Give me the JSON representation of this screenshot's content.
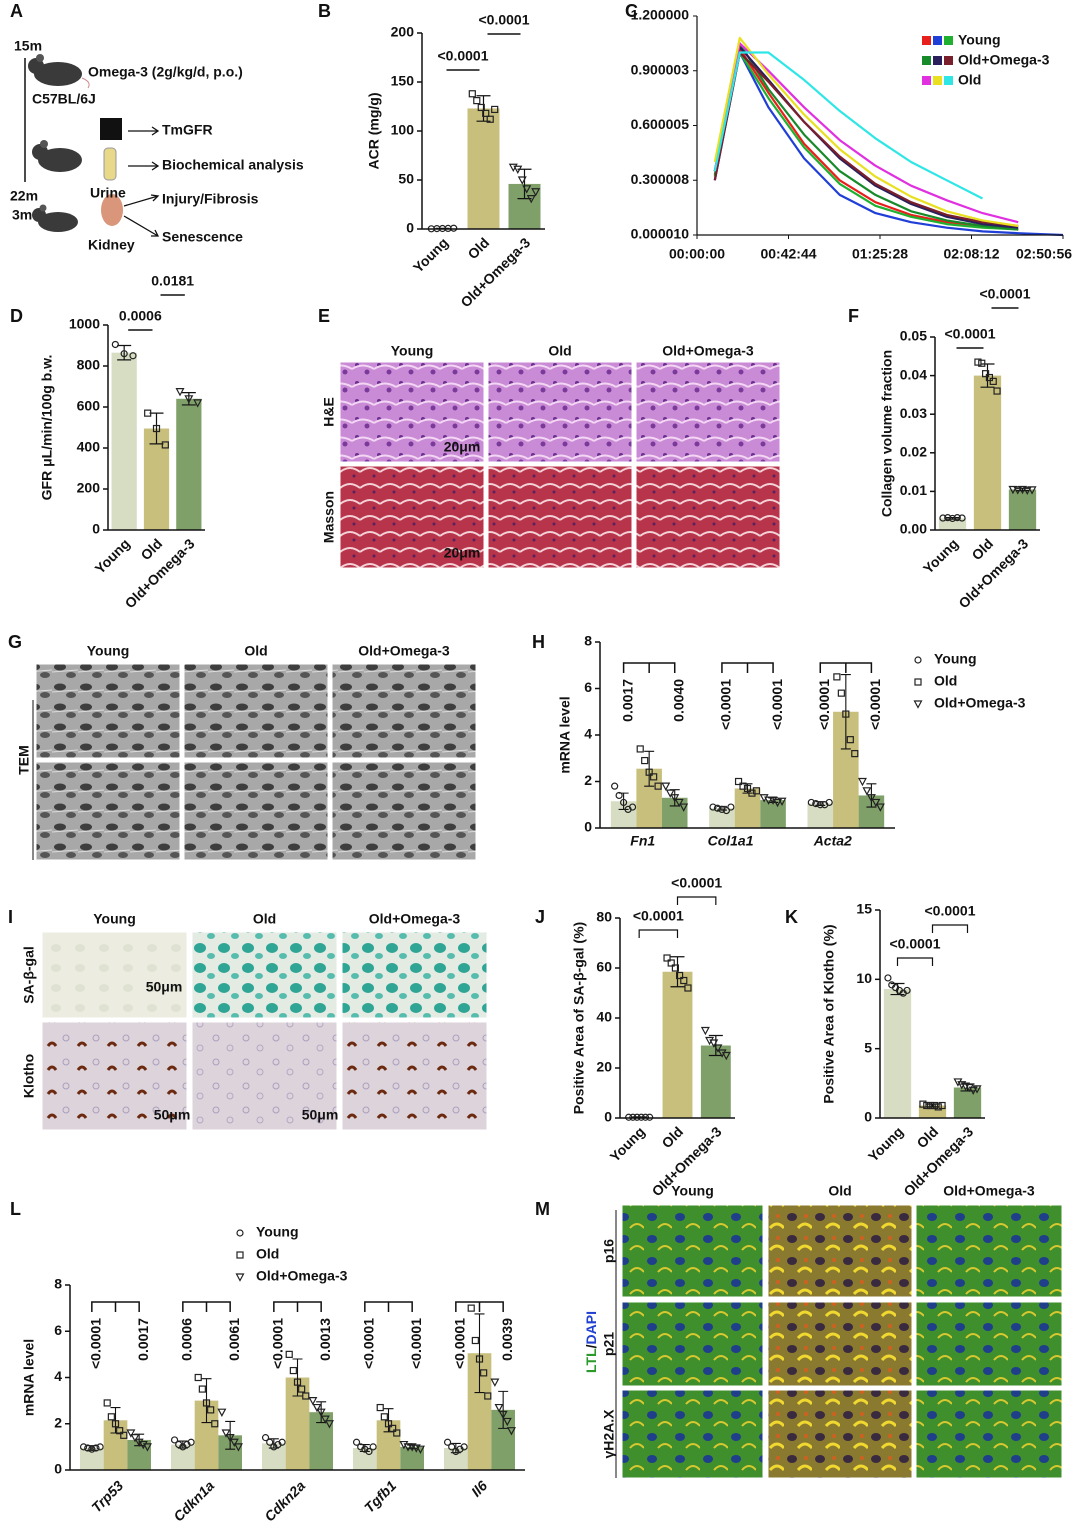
{
  "chart_data": [
    {
      "type": "bar",
      "letter": "B",
      "ylabel": "ACR (mg/g)",
      "categories": [
        "Young",
        "Old",
        "Old+Omega-3"
      ],
      "colors": [
        "#d6ddc3",
        "#c9bf7d",
        "#80a06a"
      ],
      "values": [
        0.5,
        123,
        46
      ],
      "errors": [
        0.2,
        13,
        15
      ],
      "points": [
        [
          0.2,
          0.4,
          0.5,
          0.6,
          0.8
        ],
        [
          138,
          131,
          124,
          118,
          112,
          122
        ],
        [
          63,
          61,
          50,
          41,
          31,
          38
        ]
      ],
      "ylim": [
        0,
        200
      ],
      "yticks": [
        0,
        50,
        100,
        150,
        200
      ],
      "annotation_style": "line",
      "annotations": [
        "<0.0001",
        "<0.0001"
      ]
    },
    {
      "type": "line",
      "letter": "C",
      "x": [
        0,
        500,
        1200,
        2000,
        3000,
        4000,
        5000,
        6000,
        7000,
        8000,
        9000,
        10256
      ],
      "xlim": [
        0,
        10256
      ],
      "xticks": [
        {
          "value": 0,
          "label": "00:00:00"
        },
        {
          "value": 2564,
          "label": "00:42:44"
        },
        {
          "value": 5128,
          "label": "01:25:28"
        },
        {
          "value": 7692,
          "label": "02:08:12"
        },
        {
          "value": 10256,
          "label": "02:50:56"
        }
      ],
      "ylim": [
        1e-05,
        1.2
      ],
      "yticks": [
        {
          "value": 1e-05,
          "label": "0.000010"
        },
        0.300008,
        0.600005,
        0.900003,
        {
          "value": 1.2,
          "label": "1.200000"
        }
      ],
      "series": [
        {
          "name": "Young",
          "curves": [
            {
              "color": "#e8201c",
              "values": [
                null,
                0.35,
                1.02,
                0.78,
                0.5,
                0.3,
                0.18,
                0.11,
                0.07,
                0.05,
                0.03,
                null
              ]
            },
            {
              "color": "#1f3fd6",
              "values": [
                null,
                0.3,
                1.0,
                0.7,
                0.42,
                0.22,
                0.12,
                0.07,
                0.04,
                0.02,
                0.01,
                1e-05
              ]
            },
            {
              "color": "#20b030",
              "values": [
                null,
                0.32,
                1.0,
                0.75,
                0.48,
                0.28,
                0.16,
                0.1,
                0.06,
                0.04,
                0.03,
                null
              ]
            }
          ]
        },
        {
          "name": "Old+Omega-3",
          "curves": [
            {
              "color": "#178a2a",
              "values": [
                null,
                0.33,
                1.05,
                0.8,
                0.55,
                0.35,
                0.22,
                0.13,
                0.08,
                0.05,
                0.03,
                null
              ]
            },
            {
              "color": "#2a1f5c",
              "values": [
                null,
                0.35,
                1.03,
                0.85,
                0.62,
                0.42,
                0.27,
                0.17,
                0.1,
                0.06,
                0.04,
                null
              ]
            },
            {
              "color": "#7a1f2b",
              "values": [
                null,
                0.3,
                1.0,
                0.84,
                0.62,
                0.43,
                0.28,
                0.18,
                0.11,
                0.07,
                0.05,
                null
              ]
            }
          ]
        },
        {
          "name": "Old",
          "curves": [
            {
              "color": "#e030e0",
              "values": [
                null,
                0.35,
                1.05,
                0.9,
                0.7,
                0.52,
                0.38,
                0.27,
                0.19,
                0.12,
                0.07,
                null
              ]
            },
            {
              "color": "#e8e020",
              "values": [
                null,
                0.4,
                1.08,
                0.88,
                0.66,
                0.47,
                0.32,
                0.21,
                0.13,
                0.08,
                0.05,
                null
              ]
            },
            {
              "color": "#2ee6e6",
              "values": [
                null,
                0.35,
                1.0,
                1.0,
                0.85,
                0.68,
                0.53,
                0.4,
                0.3,
                0.2,
                null,
                null
              ]
            }
          ]
        }
      ]
    },
    {
      "type": "bar",
      "letter": "D",
      "ylabel": "GFR μL/min/100g b.w.",
      "categories": [
        "Young",
        "Old",
        "Old+Omega-3"
      ],
      "colors": [
        "#d6ddc3",
        "#c9bf7d",
        "#80a06a"
      ],
      "values": [
        865,
        495,
        640
      ],
      "errors": [
        35,
        75,
        30
      ],
      "points": [
        [
          905,
          860,
          850
        ],
        [
          570,
          495,
          415
        ],
        [
          675,
          640,
          620
        ]
      ],
      "ylim": [
        0,
        1000
      ],
      "yticks": [
        0,
        200,
        400,
        600,
        800,
        1000
      ],
      "annotation_style": "line",
      "annotations": [
        "0.0006",
        "0.0181"
      ]
    },
    {
      "type": "bar",
      "letter": "F",
      "ylabel": "Collagen volume fraction",
      "categories": [
        "Young",
        "Old",
        "Old+Omega-3"
      ],
      "colors": [
        "#d6ddc3",
        "#c9bf7d",
        "#80a06a"
      ],
      "values": [
        0.003,
        0.04,
        0.0105
      ],
      "errors": [
        0.0002,
        0.003,
        0.0003
      ],
      "points": [
        [
          0.0031,
          0.0032,
          0.003,
          0.0032,
          0.0031
        ],
        [
          0.0435,
          0.0432,
          0.0405,
          0.0395,
          0.0385,
          0.036
        ],
        [
          0.0105,
          0.0104,
          0.0105,
          0.0103,
          0.0104
        ]
      ],
      "ylim": [
        0,
        0.05
      ],
      "yticks": [
        {
          "value": 0,
          "label": "0.00"
        },
        0.01,
        0.02,
        0.03,
        0.04,
        0.05
      ],
      "annotation_style": "line",
      "annotations": [
        "<0.0001",
        "<0.0001"
      ]
    },
    {
      "type": "grouped_bar",
      "letter": "H",
      "ylabel": "mRNA level",
      "categories": [
        "Fn1",
        "Col1a1",
        "Acta2"
      ],
      "ylim": [
        0,
        8
      ],
      "yticks": [
        0,
        2,
        4,
        6,
        8
      ],
      "series": [
        {
          "name": "Young",
          "color": "#d6ddc3",
          "values": [
            1.15,
            0.85,
            1.05
          ],
          "errors": [
            0.35,
            0.08,
            0.08
          ],
          "points": [
            [
              1.8,
              1.4,
              1.1,
              0.8,
              0.9
            ],
            [
              0.9,
              0.85,
              0.8,
              0.75,
              0.9
            ],
            [
              1.1,
              1.05,
              1.0,
              1.0,
              1.1
            ]
          ]
        },
        {
          "name": "Old",
          "color": "#c9bf7d",
          "values": [
            2.55,
            1.7,
            5.0
          ],
          "errors": [
            0.75,
            0.2,
            1.6
          ],
          "points": [
            [
              3.4,
              2.9,
              2.4,
              2.2,
              1.8
            ],
            [
              2.0,
              1.8,
              1.7,
              1.5,
              1.6
            ],
            [
              6.5,
              5.8,
              4.9,
              3.8,
              3.2
            ]
          ]
        },
        {
          "name": "Old+Omega-3",
          "color": "#80a06a",
          "values": [
            1.3,
            1.2,
            1.4
          ],
          "errors": [
            0.35,
            0.1,
            0.5
          ],
          "points": [
            [
              1.8,
              1.5,
              1.3,
              1.1,
              0.9
            ],
            [
              1.3,
              1.2,
              1.2,
              1.1,
              1.15
            ],
            [
              2.0,
              1.6,
              1.3,
              1.1,
              0.9
            ]
          ]
        }
      ],
      "annotations": [
        [
          "0.0017",
          "0.0040"
        ],
        [
          "<0.0001",
          "<0.0001"
        ],
        [
          "<0.0001",
          "<0.0001"
        ]
      ]
    },
    {
      "type": "bar",
      "letter": "J",
      "ylabel": "Positive Area of SA-β-gal  (%)",
      "categories": [
        "Young",
        "Old",
        "Old+Omega-3"
      ],
      "colors": [
        "#d6ddc3",
        "#c9bf7d",
        "#80a06a"
      ],
      "values": [
        0.3,
        58.5,
        29
      ],
      "errors": [
        0.1,
        6,
        4
      ],
      "points": [
        [
          0.3,
          0.3,
          0.3,
          0.3,
          0.3,
          0.3
        ],
        [
          64,
          62,
          60,
          57,
          55,
          52
        ],
        [
          35,
          31,
          30,
          28,
          26,
          25
        ]
      ],
      "ylim": [
        0,
        80
      ],
      "yticks": [
        0,
        20,
        40,
        60,
        80
      ],
      "annotation_style": "bracket",
      "annotations": [
        "<0.0001",
        "<0.0001"
      ]
    },
    {
      "type": "bar",
      "letter": "K",
      "ylabel": "Positive Area of Klotho (%)",
      "categories": [
        "Young",
        "Old",
        "Old+Omega-3"
      ],
      "colors": [
        "#d6ddc3",
        "#c9bf7d",
        "#80a06a"
      ],
      "values": [
        9.3,
        0.9,
        2.2
      ],
      "errors": [
        0.4,
        0.1,
        0.25
      ],
      "points": [
        [
          10.1,
          9.6,
          9.4,
          9.2,
          9.0,
          9.2
        ],
        [
          1.0,
          0.9,
          0.9,
          0.9,
          0.8,
          0.9
        ],
        [
          2.6,
          2.4,
          2.3,
          2.2,
          2.0,
          2.1
        ]
      ],
      "ylim": [
        0,
        15
      ],
      "yticks": [
        0,
        5,
        10,
        15
      ],
      "annotation_style": "bracket",
      "annotations": [
        "<0.0001",
        "<0.0001"
      ]
    },
    {
      "type": "grouped_bar",
      "letter": "L",
      "ylabel": "mRNA level",
      "categories": [
        "Trp53",
        "Cdkn1a",
        "Cdkn2a",
        "Tgfb1",
        "Il6"
      ],
      "ylim": [
        0,
        8
      ],
      "yticks": [
        0,
        2,
        4,
        6,
        8
      ],
      "series": [
        {
          "name": "Young",
          "color": "#d6ddc3",
          "values": [
            0.95,
            1.1,
            1.15,
            0.95,
            0.95
          ],
          "errors": [
            0.1,
            0.15,
            0.2,
            0.15,
            0.2
          ],
          "points": [
            [
              1.0,
              0.95,
              0.9,
              0.95,
              1.0
            ],
            [
              1.3,
              1.1,
              1.0,
              1.1,
              1.2
            ],
            [
              1.4,
              1.2,
              1.0,
              1.1,
              1.2
            ],
            [
              1.2,
              1.0,
              0.9,
              0.8,
              1.0
            ],
            [
              1.2,
              1.0,
              0.8,
              0.9,
              1.0
            ]
          ]
        },
        {
          "name": "Old",
          "color": "#c9bf7d",
          "values": [
            2.15,
            3.0,
            4.0,
            2.15,
            5.05
          ],
          "errors": [
            0.55,
            0.95,
            0.8,
            0.5,
            1.7
          ],
          "points": [
            [
              2.9,
              2.3,
              2.0,
              1.7,
              1.5
            ],
            [
              4.0,
              3.5,
              2.9,
              2.6,
              2.0
            ],
            [
              5.0,
              4.3,
              3.8,
              3.5,
              3.2
            ],
            [
              2.7,
              2.3,
              2.0,
              1.8,
              1.6
            ],
            [
              7.0,
              5.6,
              4.8,
              4.2,
              3.2
            ]
          ]
        },
        {
          "name": "Old+Omega-3",
          "color": "#80a06a",
          "values": [
            1.3,
            1.5,
            2.5,
            1.0,
            2.6
          ],
          "errors": [
            0.25,
            0.6,
            0.45,
            0.08,
            0.8
          ],
          "points": [
            [
              1.6,
              1.4,
              1.2,
              1.1,
              1.0
            ],
            [
              2.5,
              1.6,
              1.4,
              1.2,
              1.0
            ],
            [
              3.0,
              2.7,
              2.5,
              2.2,
              2.0
            ],
            [
              1.1,
              1.0,
              1.0,
              0.95,
              0.9
            ],
            [
              3.8,
              2.7,
              2.4,
              2.1,
              1.7
            ]
          ]
        }
      ],
      "annotations": [
        [
          "<0.0001",
          "0.0017"
        ],
        [
          "0.0006",
          "0.0061"
        ],
        [
          "<0.0001",
          "0.0013"
        ],
        [
          "<0.0001",
          "<0.0001"
        ],
        [
          "<0.0001",
          "0.0039"
        ]
      ]
    }
  ],
  "panel_a": {
    "letter": "A",
    "start_age": "15m",
    "strain": "C57BL/6J",
    "treatment": "Omega-3 (2g/kg/d, p.o.)",
    "end_age": "22m",
    "young_age": "3m",
    "sample_urine": "Urine",
    "sample_kidney": "Kidney",
    "outputs": [
      "TmGFR",
      "Biochemical analysis",
      "Injury/Fibrosis",
      "Senescence"
    ]
  },
  "panel_e": {
    "letter": "E",
    "columns": [
      "Young",
      "Old",
      "Old+Omega-3"
    ],
    "rows": [
      "H&E",
      "Masson"
    ],
    "scale_bars": [
      "20μm",
      "20μm"
    ]
  },
  "panel_g": {
    "letter": "G",
    "columns": [
      "Young",
      "Old",
      "Old+Omega-3"
    ],
    "row_label": "TEM"
  },
  "panel_i": {
    "letter": "I",
    "columns": [
      "Young",
      "Old",
      "Old+Omega-3"
    ],
    "rows": [
      "SA-β-gal",
      "Klotho"
    ],
    "scale_bars": [
      "50μm",
      "50μm",
      "50μm"
    ]
  },
  "panel_m": {
    "letter": "M",
    "columns": [
      "Young",
      "Old",
      "Old+Omega-3"
    ],
    "rows": [
      "p16",
      "p21",
      "γH2A.X"
    ],
    "stain": [
      "LTL",
      "/",
      "DAPI"
    ]
  }
}
